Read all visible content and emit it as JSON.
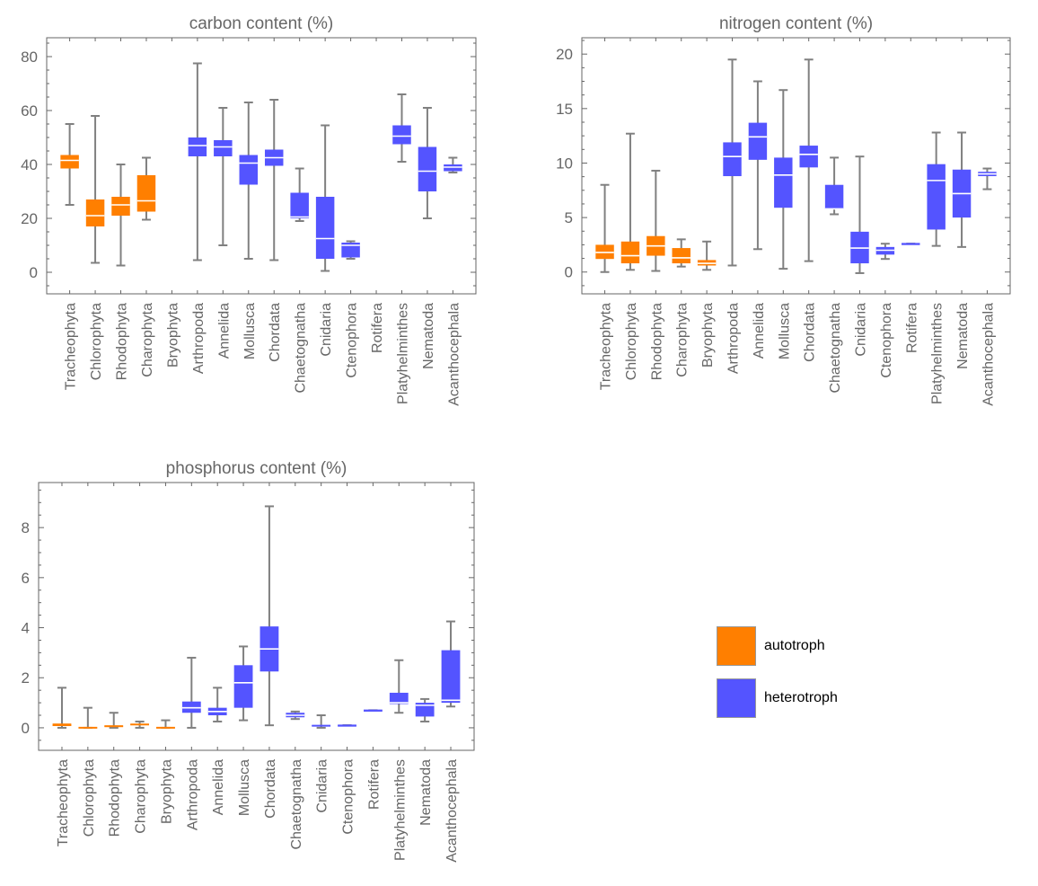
{
  "colors": {
    "autotroph": "#ff7f00",
    "heterotroph": "#5454ff",
    "whisker": "#808080",
    "axis": "#666666"
  },
  "legend": {
    "items": [
      {
        "label": "autotroph",
        "color": "#ff7f00"
      },
      {
        "label": "heterotroph",
        "color": "#5454ff"
      }
    ],
    "position": "bottom-right"
  },
  "chart_data": [
    {
      "type": "boxplot",
      "title": "carbon content (%)",
      "xlabel": "",
      "ylabel": "",
      "ylim": [
        -8,
        87
      ],
      "yticks": [
        0,
        20,
        40,
        60,
        80
      ],
      "categories": [
        "Tracheophyta",
        "Chlorophyta",
        "Rhodophyta",
        "Charophyta",
        "Bryophyta",
        "Arthropoda",
        "Annelida",
        "Mollusca",
        "Chordata",
        "Chaetognatha",
        "Cnidaria",
        "Ctenophora",
        "Rotifera",
        "Platyhelminthes",
        "Nematoda",
        "Acanthocephala"
      ],
      "groups": [
        "autotroph",
        "autotroph",
        "autotroph",
        "autotroph",
        "autotroph",
        "heterotroph",
        "heterotroph",
        "heterotroph",
        "heterotroph",
        "heterotroph",
        "heterotroph",
        "heterotroph",
        "heterotroph",
        "heterotroph",
        "heterotroph",
        "heterotroph"
      ],
      "boxes": [
        {
          "min": 25,
          "q1": 38.5,
          "median": 41.5,
          "q3": 43.5,
          "max": 55
        },
        {
          "min": 3.5,
          "q1": 17,
          "median": 21,
          "q3": 27,
          "max": 58
        },
        {
          "min": 2.5,
          "q1": 21,
          "median": 25,
          "q3": 28,
          "max": 40
        },
        {
          "min": 19.5,
          "q1": 22.5,
          "median": 26.5,
          "q3": 36,
          "max": 42.5
        },
        null,
        {
          "min": 4.5,
          "q1": 43,
          "median": 47,
          "q3": 50,
          "max": 77.5
        },
        {
          "min": 10,
          "q1": 43,
          "median": 46.5,
          "q3": 49,
          "max": 61
        },
        {
          "min": 5,
          "q1": 32.5,
          "median": 40.5,
          "q3": 43.5,
          "max": 63
        },
        {
          "min": 4.5,
          "q1": 39.5,
          "median": 42.5,
          "q3": 45.5,
          "max": 64
        },
        {
          "min": 19,
          "q1": 20,
          "median": 20.5,
          "q3": 29.5,
          "max": 38.5
        },
        {
          "min": 0.5,
          "q1": 5,
          "median": 12.5,
          "q3": 28,
          "max": 54.5
        },
        {
          "min": 5,
          "q1": 5.5,
          "median": 10,
          "q3": 11,
          "max": 11.5
        },
        null,
        {
          "min": 41,
          "q1": 47.5,
          "median": 50.5,
          "q3": 54.5,
          "max": 66
        },
        {
          "min": 20,
          "q1": 30,
          "median": 37.5,
          "q3": 46.5,
          "max": 61
        },
        {
          "min": 37,
          "q1": 37.5,
          "median": 39,
          "q3": 40,
          "max": 42.5
        }
      ]
    },
    {
      "type": "boxplot",
      "title": "nitrogen content (%)",
      "xlabel": "",
      "ylabel": "",
      "ylim": [
        -2,
        21.5
      ],
      "yticks": [
        0,
        5,
        10,
        15,
        20
      ],
      "categories": [
        "Tracheophyta",
        "Chlorophyta",
        "Rhodophyta",
        "Charophyta",
        "Bryophyta",
        "Arthropoda",
        "Annelida",
        "Mollusca",
        "Chordata",
        "Chaetognatha",
        "Cnidaria",
        "Ctenophora",
        "Rotifera",
        "Platyhelminthes",
        "Nematoda",
        "Acanthocephala"
      ],
      "groups": [
        "autotroph",
        "autotroph",
        "autotroph",
        "autotroph",
        "autotroph",
        "heterotroph",
        "heterotroph",
        "heterotroph",
        "heterotroph",
        "heterotroph",
        "heterotroph",
        "heterotroph",
        "heterotroph",
        "heterotroph",
        "heterotroph",
        "heterotroph"
      ],
      "boxes": [
        {
          "min": 0,
          "q1": 1.2,
          "median": 1.8,
          "q3": 2.5,
          "max": 8
        },
        {
          "min": 0.2,
          "q1": 0.8,
          "median": 1.5,
          "q3": 2.8,
          "max": 12.7
        },
        {
          "min": 0.1,
          "q1": 1.5,
          "median": 2.4,
          "q3": 3.3,
          "max": 9.3
        },
        {
          "min": 0.5,
          "q1": 0.8,
          "median": 1.3,
          "q3": 2.2,
          "max": 3
        },
        {
          "min": 0.2,
          "q1": 0.6,
          "median": 0.8,
          "q3": 1.1,
          "max": 2.8
        },
        {
          "min": 0.6,
          "q1": 8.8,
          "median": 10.6,
          "q3": 11.9,
          "max": 19.5
        },
        {
          "min": 2.1,
          "q1": 10.3,
          "median": 12.4,
          "q3": 13.7,
          "max": 17.5
        },
        {
          "min": 0.3,
          "q1": 5.9,
          "median": 8.9,
          "q3": 10.5,
          "max": 16.7
        },
        {
          "min": 1,
          "q1": 9.6,
          "median": 10.8,
          "q3": 11.6,
          "max": 19.5
        },
        {
          "min": 5.3,
          "q1": 5.8,
          "median": 5.8,
          "q3": 8,
          "max": 10.5
        },
        {
          "min": -0.1,
          "q1": 0.8,
          "median": 2.2,
          "q3": 3.7,
          "max": 10.6
        },
        {
          "min": 1.2,
          "q1": 1.6,
          "median": 2,
          "q3": 2.3,
          "max": 2.6
        },
        {
          "min": 2.6,
          "q1": 2.6,
          "median": 2.6,
          "q3": 2.6,
          "max": 2.6
        },
        {
          "min": 2.4,
          "q1": 3.9,
          "median": 8.4,
          "q3": 9.9,
          "max": 12.8
        },
        {
          "min": 2.3,
          "q1": 5,
          "median": 7.2,
          "q3": 9.4,
          "max": 12.8
        },
        {
          "min": 7.6,
          "q1": 8.8,
          "median": 9,
          "q3": 9.2,
          "max": 9.5
        }
      ]
    },
    {
      "type": "boxplot",
      "title": "phosphorus content (%)",
      "xlabel": "",
      "ylabel": "",
      "ylim": [
        -0.9,
        9.8
      ],
      "yticks": [
        0,
        2,
        4,
        6,
        8
      ],
      "categories": [
        "Tracheophyta",
        "Chlorophyta",
        "Rhodophyta",
        "Charophyta",
        "Bryophyta",
        "Arthropoda",
        "Annelida",
        "Mollusca",
        "Chordata",
        "Chaetognatha",
        "Cnidaria",
        "Ctenophora",
        "Rotifera",
        "Platyhelminthes",
        "Nematoda",
        "Acanthocephala"
      ],
      "groups": [
        "autotroph",
        "autotroph",
        "autotroph",
        "autotroph",
        "autotroph",
        "heterotroph",
        "heterotroph",
        "heterotroph",
        "heterotroph",
        "heterotroph",
        "heterotroph",
        "heterotroph",
        "heterotroph",
        "heterotroph",
        "heterotroph",
        "heterotroph"
      ],
      "boxes": [
        {
          "min": 0,
          "q1": 0.08,
          "median": 0.1,
          "q3": 0.17,
          "max": 1.6
        },
        {
          "min": 0,
          "q1": 0.01,
          "median": 0.01,
          "q3": 0.02,
          "max": 0.8
        },
        {
          "min": 0,
          "q1": 0.06,
          "median": 0.07,
          "q3": 0.08,
          "max": 0.6
        },
        {
          "min": 0,
          "q1": 0.13,
          "median": 0.14,
          "q3": 0.15,
          "max": 0.25
        },
        {
          "min": 0,
          "q1": 0.01,
          "median": 0.01,
          "q3": 0.02,
          "max": 0.3
        },
        {
          "min": 0,
          "q1": 0.6,
          "median": 0.8,
          "q3": 1.05,
          "max": 2.8
        },
        {
          "min": 0.25,
          "q1": 0.5,
          "median": 0.65,
          "q3": 0.8,
          "max": 1.6
        },
        {
          "min": 0.3,
          "q1": 0.8,
          "median": 1.8,
          "q3": 2.5,
          "max": 3.25
        },
        {
          "min": 0.1,
          "q1": 2.25,
          "median": 3.15,
          "q3": 4.05,
          "max": 8.85
        },
        {
          "min": 0.35,
          "q1": 0.42,
          "median": 0.5,
          "q3": 0.6,
          "max": 0.65
        },
        {
          "min": 0,
          "q1": 0.08,
          "median": 0.09,
          "q3": 0.1,
          "max": 0.5
        },
        {
          "min": 0.1,
          "q1": 0.1,
          "median": 0.1,
          "q3": 0.1,
          "max": 0.1
        },
        {
          "min": 0.7,
          "q1": 0.7,
          "median": 0.7,
          "q3": 0.7,
          "max": 0.7
        },
        {
          "min": 0.6,
          "q1": 0.95,
          "median": 1,
          "q3": 1.4,
          "max": 2.7
        },
        {
          "min": 0.25,
          "q1": 0.45,
          "median": 0.9,
          "q3": 1.0,
          "max": 1.15
        },
        {
          "min": 0.85,
          "q1": 1.0,
          "median": 1.1,
          "q3": 3.1,
          "max": 4.25
        }
      ]
    }
  ]
}
